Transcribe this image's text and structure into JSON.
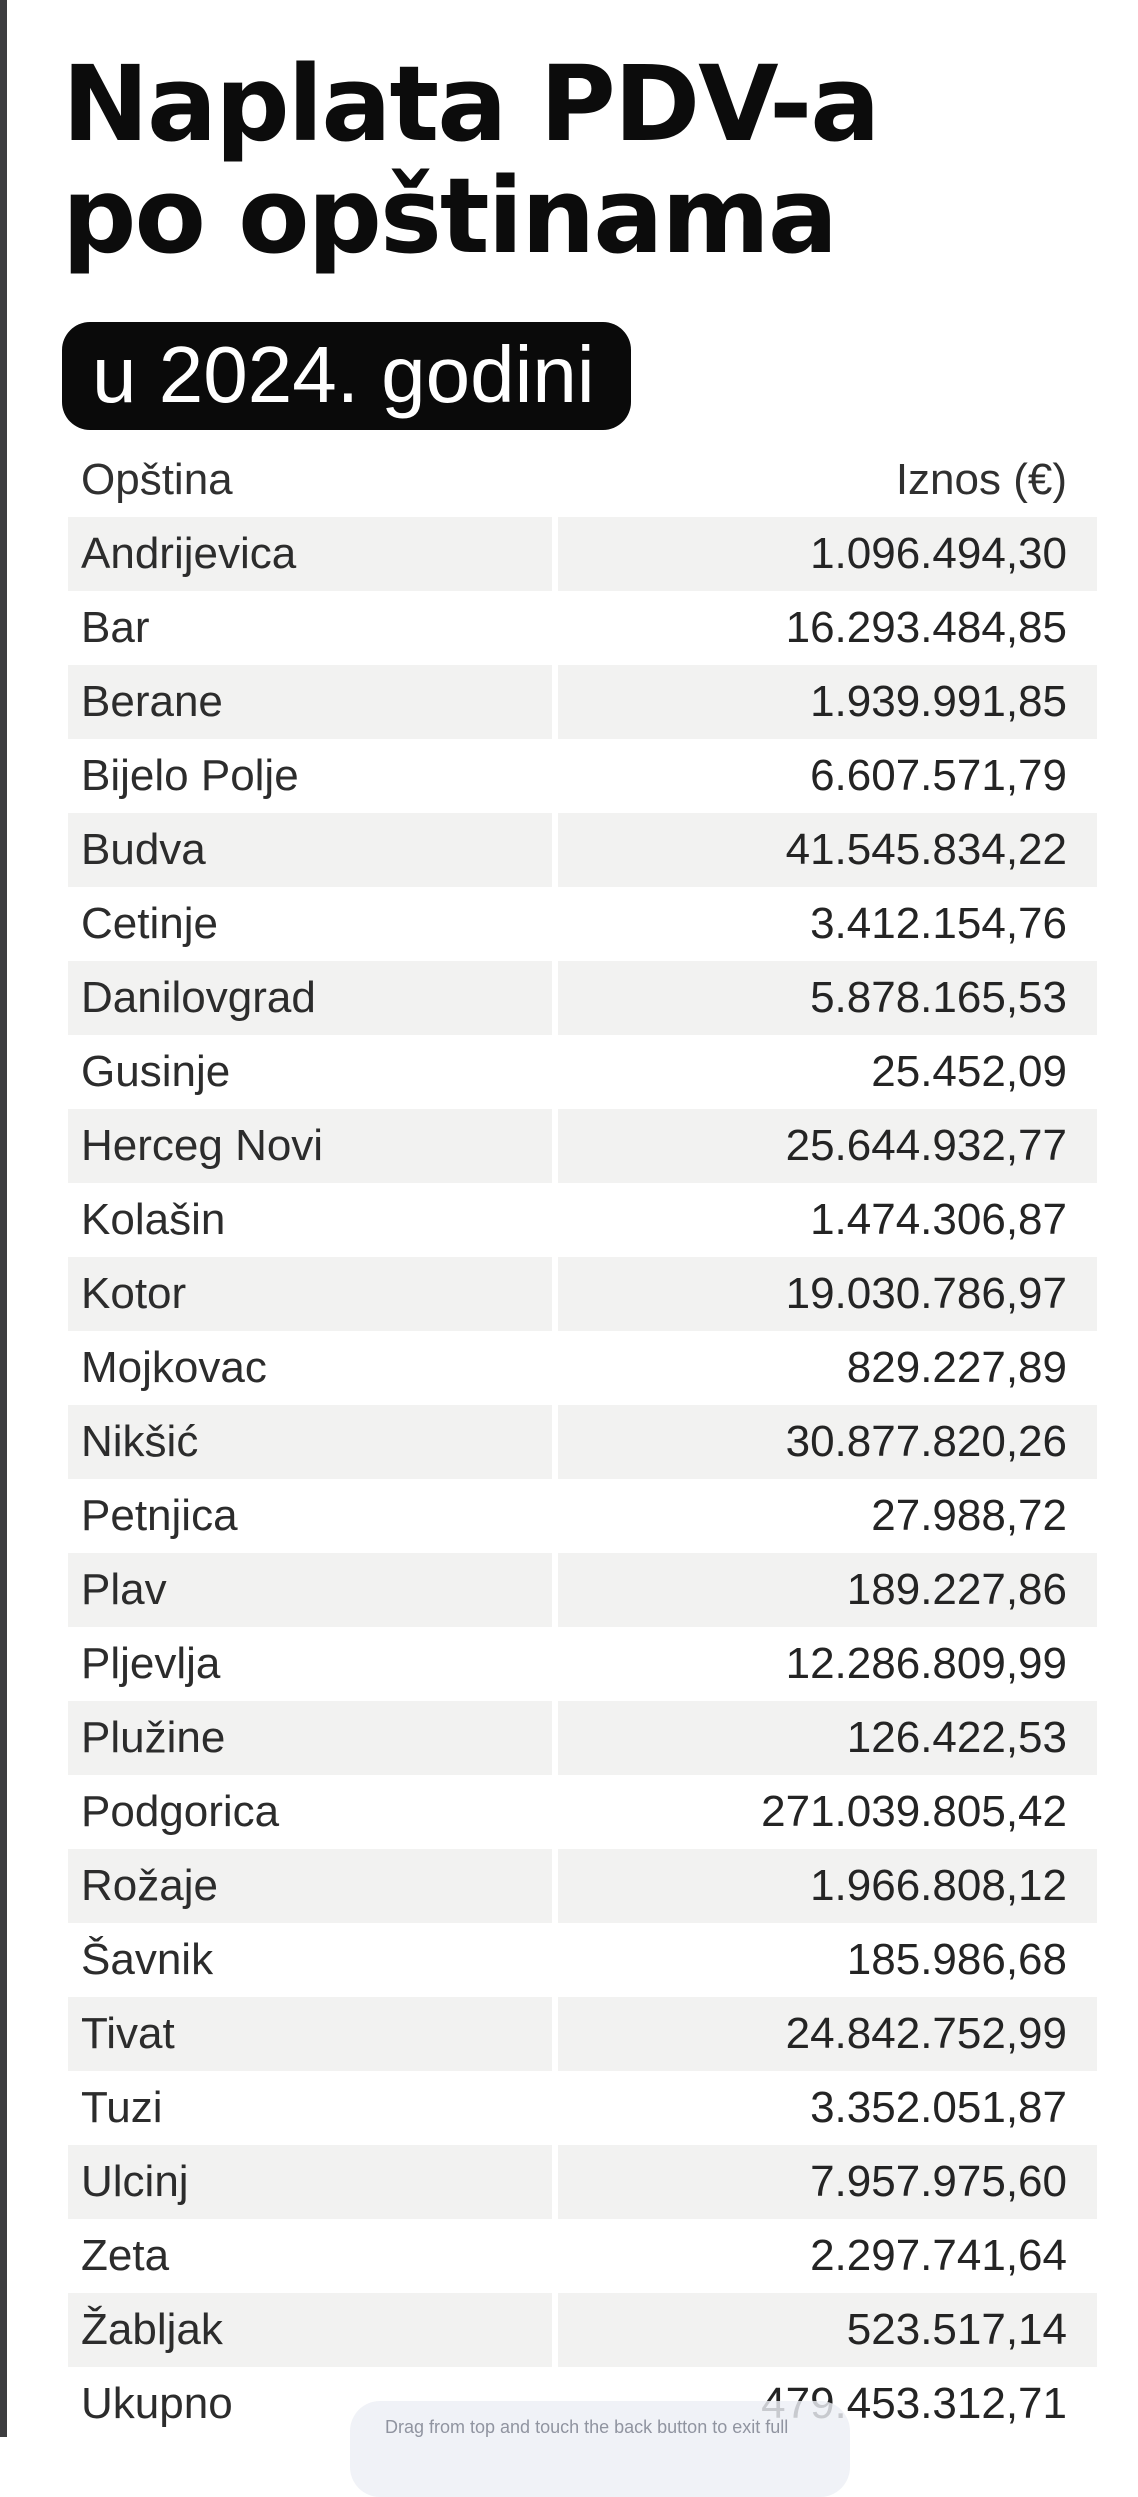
{
  "title": {
    "line1": "Naplata PDV-a",
    "line2": "po opštinama"
  },
  "badge": {
    "label": "u 2024. godini"
  },
  "toast": {
    "text": "Drag from top and touch the back button to exit full"
  },
  "colors": {
    "badge_bg": "#0a0a0a",
    "row_alt_bg": "#f2f2f1",
    "edge_strip": "#3d3d3f",
    "toast_bg": "rgba(237,239,245,0.82)",
    "toast_text": "#9094a0",
    "text": "#2c2c2c"
  },
  "chart_data": {
    "type": "table",
    "title": "Naplata PDV-a po opštinama",
    "subtitle": "u 2024. godini",
    "columns": [
      "Opština",
      "Iznos (€)"
    ],
    "rows": [
      {
        "name": "Andrijevica",
        "display": "1.096.494,30",
        "value": 1096494.3
      },
      {
        "name": "Bar",
        "display": "16.293.484,85",
        "value": 16293484.85
      },
      {
        "name": "Berane",
        "display": "1.939.991,85",
        "value": 1939991.85
      },
      {
        "name": "Bijelo Polje",
        "display": "6.607.571,79",
        "value": 6607571.79
      },
      {
        "name": "Budva",
        "display": "41.545.834,22",
        "value": 41545834.22
      },
      {
        "name": "Cetinje",
        "display": "3.412.154,76",
        "value": 3412154.76
      },
      {
        "name": "Danilovgrad",
        "display": "5.878.165,53",
        "value": 5878165.53
      },
      {
        "name": "Gusinje",
        "display": "25.452,09",
        "value": 25452.09
      },
      {
        "name": "Herceg Novi",
        "display": "25.644.932,77",
        "value": 25644932.77
      },
      {
        "name": "Kolašin",
        "display": "1.474.306,87",
        "value": 1474306.87
      },
      {
        "name": "Kotor",
        "display": "19.030.786,97",
        "value": 19030786.97
      },
      {
        "name": "Mojkovac",
        "display": "829.227,89",
        "value": 829227.89
      },
      {
        "name": "Nikšić",
        "display": "30.877.820,26",
        "value": 30877820.26
      },
      {
        "name": "Petnjica",
        "display": "27.988,72",
        "value": 27988.72
      },
      {
        "name": "Plav",
        "display": "189.227,86",
        "value": 189227.86
      },
      {
        "name": "Pljevlja",
        "display": "12.286.809,99",
        "value": 12286809.99
      },
      {
        "name": "Plužine",
        "display": "126.422,53",
        "value": 126422.53
      },
      {
        "name": "Podgorica",
        "display": "271.039.805,42",
        "value": 271039805.42
      },
      {
        "name": "Rožaje",
        "display": "1.966.808,12",
        "value": 1966808.12
      },
      {
        "name": "Šavnik",
        "display": "185.986,68",
        "value": 185986.68
      },
      {
        "name": "Tivat",
        "display": "24.842.752,99",
        "value": 24842752.99
      },
      {
        "name": "Tuzi",
        "display": "3.352.051,87",
        "value": 3352051.87
      },
      {
        "name": "Ulcinj",
        "display": "7.957.975,60",
        "value": 7957975.6
      },
      {
        "name": "Zeta",
        "display": "2.297.741,64",
        "value": 2297741.64
      },
      {
        "name": "Žabljak",
        "display": "523.517,14",
        "value": 523517.14
      }
    ],
    "total": {
      "name": "Ukupno",
      "display": "479.453.312,71",
      "value": 479453312.71
    },
    "layout": {
      "alternating_rows": true,
      "first_data_row_shaded": true,
      "amount_align": "right"
    }
  }
}
